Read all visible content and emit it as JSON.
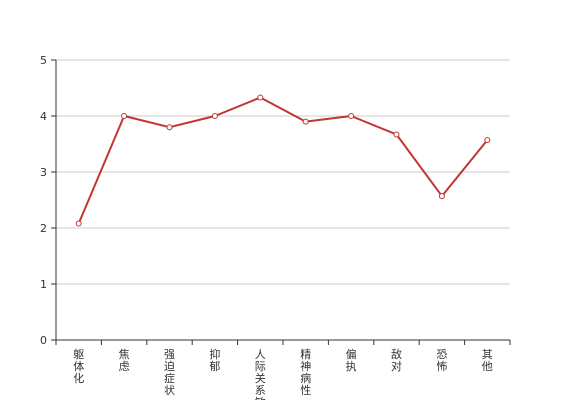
{
  "chart_data": {
    "type": "line",
    "categories": [
      "躯体化",
      "焦虑",
      "强迫症状",
      "抑郁",
      "人际关系敏感",
      "精神病性",
      "偏执",
      "敌对",
      "恐怖",
      "其他"
    ],
    "series": [
      {
        "values": [
          2.08,
          4.0,
          3.8,
          4.0,
          4.33,
          3.9,
          4.0,
          3.67,
          2.57,
          3.57
        ]
      }
    ],
    "ylim": [
      0,
      5
    ],
    "yticks": [
      0,
      1,
      2,
      3,
      4,
      5
    ],
    "grid": true,
    "colors": {
      "line": "#c23531",
      "marker_fill": "#ffffff",
      "grid": "#cccccc",
      "axis": "#333333"
    }
  }
}
